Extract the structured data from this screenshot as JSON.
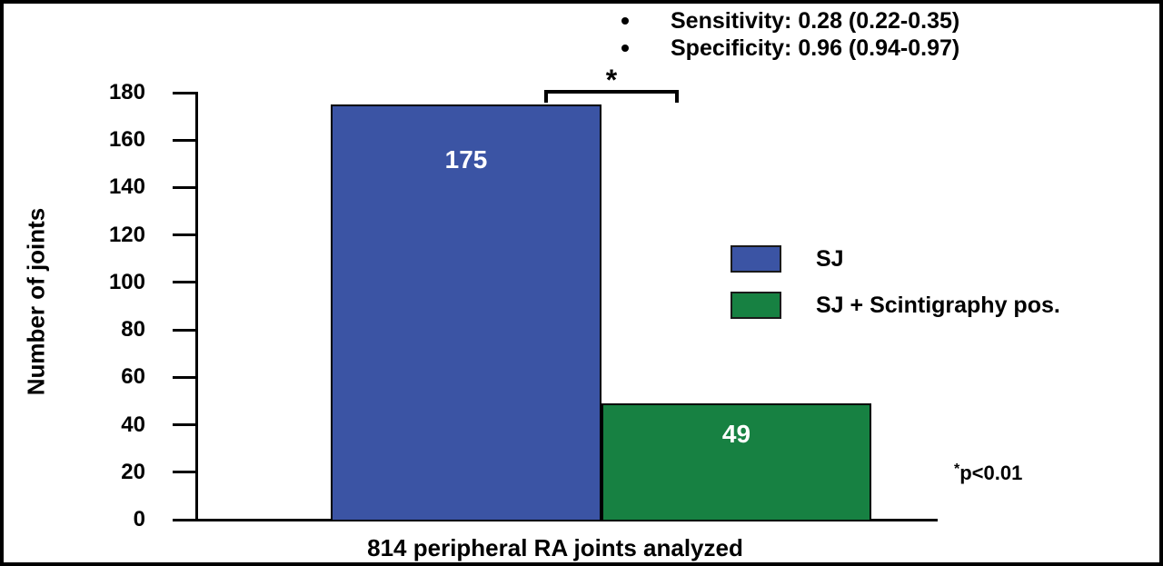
{
  "figure": {
    "stats_bullets": [
      "Sensitivity: 0.28 (0.22-0.35)",
      "Specificity: 0.96 (0.94-0.97)"
    ],
    "y_axis_label": "Number of joints",
    "x_caption": "814 peripheral RA joints analyzed",
    "significance_star": "*",
    "p_note_star": "*",
    "p_note_text": "p<0.01"
  },
  "legend": {
    "items": [
      {
        "label": "SJ",
        "color": "#3B54A4"
      },
      {
        "label": "SJ + Scintigraphy pos.",
        "color": "#178142"
      }
    ]
  },
  "chart_data": {
    "type": "bar",
    "categories": [
      "SJ",
      "SJ + Scintigraphy pos."
    ],
    "values": [
      175,
      49
    ],
    "bar_labels": [
      "175",
      "49"
    ],
    "bar_colors": [
      "#3B54A4",
      "#178142"
    ],
    "bar_value_text_color": "#FFFFFF",
    "title": "",
    "xlabel": "814 peripheral RA joints analyzed",
    "ylabel": "Number of joints",
    "ylim": [
      0,
      180
    ],
    "yticks": [
      0,
      20,
      40,
      60,
      80,
      100,
      120,
      140,
      160,
      180
    ],
    "grid": false,
    "legend_position": "center-right",
    "annotations": {
      "sensitivity": "Sensitivity: 0.28 (0.22-0.35)",
      "specificity": "Specificity: 0.96 (0.94-0.97)",
      "significance_bracket": "* (between SJ bar and SJ + Scintigraphy pos. bar)",
      "significance_note": "*p<0.01"
    }
  }
}
